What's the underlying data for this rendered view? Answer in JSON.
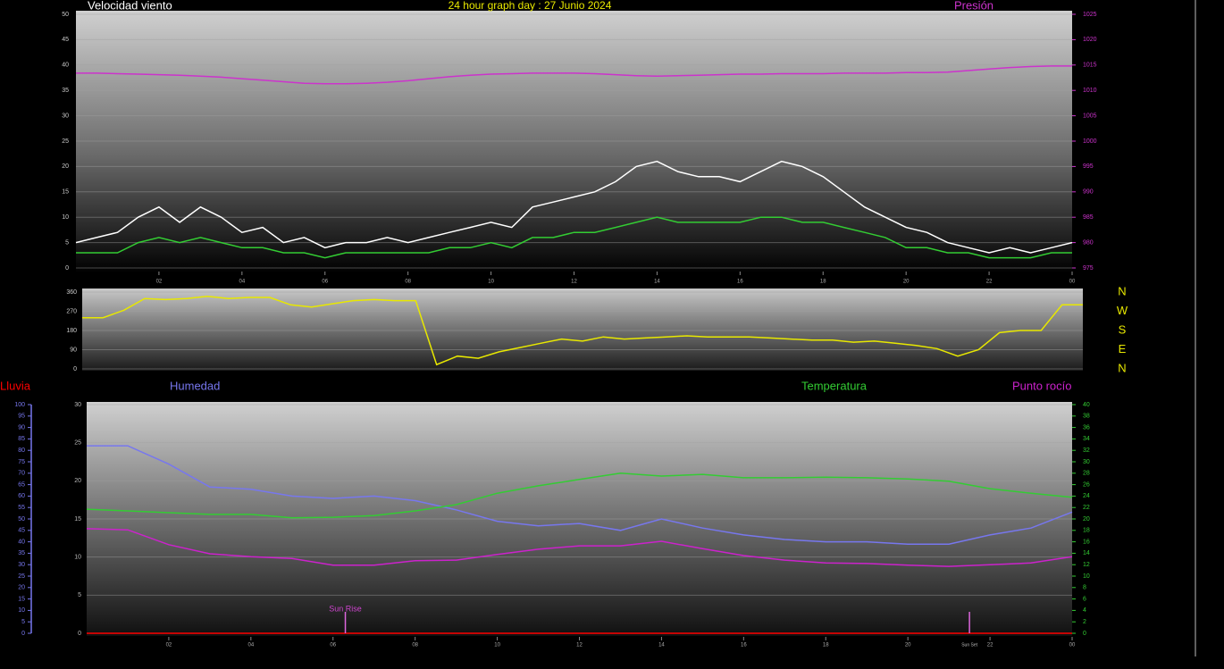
{
  "chart_data": [
    {
      "type": "line",
      "title": "24 hour graph day : 27 Junio 2024",
      "ylabel": "Velocidad viento",
      "y2label": "Presión",
      "x": [
        0,
        0.5,
        1,
        1.5,
        2,
        2.5,
        3,
        3.5,
        4,
        4.5,
        5,
        5.5,
        6,
        6.5,
        7,
        7.5,
        8,
        8.5,
        9,
        9.5,
        10,
        10.5,
        11,
        11.5,
        12,
        12.5,
        13,
        13.5,
        14,
        14.5,
        15,
        15.5,
        16,
        16.5,
        17,
        17.5,
        18,
        18.5,
        19,
        19.5,
        20,
        20.5,
        21,
        21.5,
        22,
        22.5,
        23,
        23.5,
        24
      ],
      "xlim": [
        0,
        24
      ],
      "xticks": [
        {
          "value": 2,
          "label": "02"
        },
        {
          "value": 4,
          "label": "04"
        },
        {
          "value": 6,
          "label": "06"
        },
        {
          "value": 8,
          "label": "08"
        },
        10,
        12,
        14,
        16,
        18,
        20,
        22,
        {
          "value": 24,
          "label": "00"
        }
      ],
      "ylim": [
        0,
        50
      ],
      "yticks": [
        0,
        5,
        10,
        15,
        20,
        25,
        30,
        35,
        40,
        45,
        50
      ],
      "y2lim": [
        975,
        1025
      ],
      "y2ticks": [
        975,
        980,
        985,
        990,
        995,
        1000,
        1005,
        1010,
        1015,
        1020,
        1025
      ],
      "grid": true,
      "series": [
        {
          "color": "#ffffff",
          "values": [
            5,
            6,
            7,
            10,
            12,
            9,
            12,
            10,
            7,
            8,
            5,
            6,
            4,
            5,
            5,
            6,
            5,
            6,
            7,
            8,
            9,
            8,
            12,
            13,
            14,
            15,
            17,
            20,
            21,
            19,
            18,
            18,
            17,
            19,
            21,
            20,
            18,
            15,
            12,
            10,
            8,
            7,
            5,
            4,
            3,
            4,
            3,
            4,
            5
          ]
        },
        {
          "color": "#33cc33",
          "values": [
            3,
            3,
            3,
            5,
            6,
            5,
            6,
            5,
            4,
            4,
            3,
            3,
            2,
            3,
            3,
            3,
            3,
            3,
            4,
            4,
            5,
            4,
            6,
            6,
            7,
            7,
            8,
            9,
            10,
            9,
            9,
            9,
            9,
            10,
            10,
            9,
            9,
            8,
            7,
            6,
            4,
            4,
            3,
            3,
            2,
            2,
            2,
            3,
            3
          ]
        },
        {
          "name": "Presión",
          "axis": "y2",
          "color": "#cc33cc",
          "values": [
            1013.4,
            1013.4,
            1013.3,
            1013.2,
            1013.1,
            1013.0,
            1012.8,
            1012.6,
            1012.3,
            1012.0,
            1011.7,
            1011.4,
            1011.3,
            1011.3,
            1011.4,
            1011.6,
            1011.9,
            1012.3,
            1012.7,
            1013.0,
            1013.2,
            1013.3,
            1013.4,
            1013.4,
            1013.4,
            1013.3,
            1013.1,
            1012.9,
            1012.8,
            1012.9,
            1013.0,
            1013.1,
            1013.2,
            1013.2,
            1013.3,
            1013.3,
            1013.3,
            1013.4,
            1013.4,
            1013.4,
            1013.5,
            1013.5,
            1013.6,
            1013.9,
            1014.2,
            1014.5,
            1014.7,
            1014.8,
            1014.8
          ]
        }
      ]
    },
    {
      "type": "line",
      "x": [
        0,
        0.5,
        1,
        1.5,
        2,
        2.5,
        3,
        3.5,
        4,
        4.5,
        5,
        5.5,
        6,
        6.5,
        7,
        7.5,
        8,
        8.5,
        9,
        9.5,
        10,
        10.5,
        11,
        11.5,
        12,
        12.5,
        13,
        13.5,
        14,
        14.5,
        15,
        15.5,
        16,
        16.5,
        17,
        17.5,
        18,
        18.5,
        19,
        19.5,
        20,
        20.5,
        21,
        21.5,
        22,
        22.5,
        23,
        23.5,
        24
      ],
      "xlim": [
        0,
        24
      ],
      "ylim": [
        0,
        360
      ],
      "yticks": [
        0,
        90,
        180,
        270,
        360
      ],
      "y2lim": [
        0,
        360
      ],
      "y2ticks": [
        {
          "value": 360,
          "label": "N"
        },
        {
          "value": 270,
          "label": "W"
        },
        {
          "value": 180,
          "label": "S"
        },
        {
          "value": 90,
          "label": "E"
        },
        {
          "value": 0,
          "label": "N"
        }
      ],
      "grid": true,
      "series": [
        {
          "color": "#e8e800",
          "values": [
            240,
            240,
            275,
            330,
            325,
            330,
            340,
            330,
            335,
            335,
            300,
            290,
            305,
            320,
            325,
            320,
            320,
            20,
            60,
            50,
            80,
            100,
            120,
            140,
            130,
            150,
            140,
            145,
            150,
            155,
            150,
            150,
            150,
            145,
            140,
            135,
            135,
            125,
            130,
            120,
            110,
            95,
            60,
            90,
            170,
            180,
            180,
            300,
            300
          ]
        }
      ]
    },
    {
      "type": "line",
      "x": [
        0,
        1,
        2,
        3,
        4,
        5,
        6,
        7,
        8,
        9,
        10,
        11,
        12,
        13,
        14,
        15,
        16,
        17,
        18,
        19,
        20,
        21,
        22,
        23,
        24
      ],
      "xlim": [
        0,
        24
      ],
      "xticks": [
        {
          "value": 2,
          "label": "02"
        },
        {
          "value": 4,
          "label": "04"
        },
        {
          "value": 6,
          "label": "06"
        },
        {
          "value": 8,
          "label": "08"
        },
        10,
        12,
        14,
        16,
        18,
        20,
        22,
        {
          "value": 24,
          "label": "00"
        }
      ],
      "ylim": [
        0,
        30
      ],
      "yticks": [
        0,
        5,
        10,
        15,
        20,
        25,
        30
      ],
      "y2lim": [
        0,
        40
      ],
      "y2ticks": [
        0,
        2,
        4,
        6,
        8,
        10,
        12,
        14,
        16,
        18,
        20,
        22,
        24,
        26,
        28,
        30,
        32,
        34,
        36,
        38,
        40
      ],
      "y3lim": [
        0,
        100
      ],
      "y3ticks": [
        0,
        5,
        10,
        15,
        20,
        25,
        30,
        35,
        40,
        45,
        50,
        55,
        60,
        65,
        70,
        75,
        80,
        85,
        90,
        95,
        100
      ],
      "grid": true,
      "series": [
        {
          "name": "Lluvia",
          "axis": "y",
          "color": "#ff0000",
          "values": [
            0,
            0,
            0,
            0,
            0,
            0,
            0,
            0,
            0,
            0,
            0,
            0,
            0,
            0,
            0,
            0,
            0,
            0,
            0,
            0,
            0,
            0,
            0,
            0,
            0
          ]
        },
        {
          "name": "Humedad",
          "axis": "y3",
          "color": "#7777ee",
          "values": [
            82,
            82,
            74,
            64,
            63,
            60,
            59,
            60,
            58,
            54,
            49,
            47,
            48,
            45,
            50,
            46,
            43,
            41,
            40,
            40,
            39,
            39,
            43,
            46,
            53
          ]
        },
        {
          "name": "Temperatura",
          "axis": "y2",
          "color": "#33cc33",
          "values": [
            21.7,
            21.4,
            21.1,
            20.8,
            20.8,
            20.2,
            20.3,
            20.6,
            21.4,
            22.5,
            24.5,
            25.8,
            26.9,
            28.0,
            27.5,
            27.8,
            27.2,
            27.2,
            27.3,
            27.2,
            27.0,
            26.6,
            25.3,
            24.5,
            23.8
          ]
        },
        {
          "name": "Punto rocío",
          "axis": "y2",
          "color": "#cc22cc",
          "values": [
            18.3,
            18.1,
            15.5,
            13.9,
            13.4,
            13.1,
            11.9,
            11.9,
            12.7,
            12.8,
            13.8,
            14.7,
            15.3,
            15.3,
            16.1,
            14.8,
            13.6,
            12.8,
            12.3,
            12.2,
            11.9,
            11.7,
            12.0,
            12.3,
            13.4
          ]
        }
      ],
      "annotations": [
        {
          "label": "Sun Rise",
          "x": 6.3
        },
        {
          "label": "Sun Set",
          "x": 21.5
        }
      ]
    }
  ]
}
